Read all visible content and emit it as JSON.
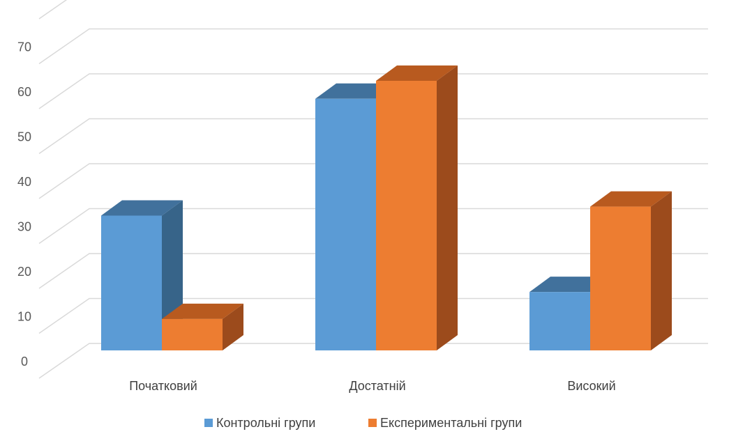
{
  "chart_data": {
    "type": "bar",
    "style": "3d-clustered-column",
    "categories": [
      "Початковий",
      "Достатній",
      "Високий"
    ],
    "series": [
      {
        "name": "Контрольні групи",
        "values": [
          30,
          56,
          13
        ],
        "color": "#5b9bd5",
        "top_color": "#41719c",
        "side_color": "#376489"
      },
      {
        "name": "Експериментальні групи",
        "values": [
          7,
          60,
          32
        ],
        "color": "#ed7d31",
        "top_color": "#b85a1f",
        "side_color": "#9c4b1c"
      }
    ],
    "yticks": [
      0,
      10,
      20,
      30,
      40,
      50,
      60,
      70
    ],
    "ylim": [
      0,
      80
    ],
    "grid": true,
    "legend": "bottom"
  }
}
